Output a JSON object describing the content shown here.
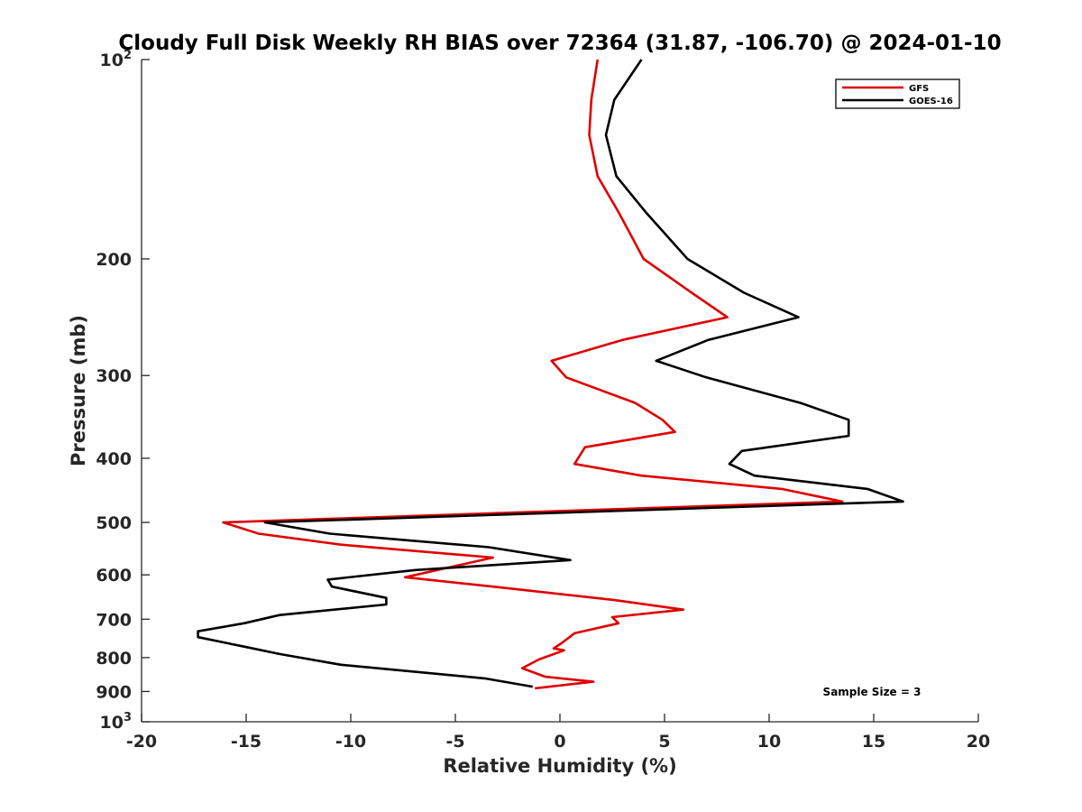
{
  "chart_data": {
    "type": "line",
    "title": "Cloudy Full Disk Weekly RH BIAS over 72364 (31.87, -106.70) @ 2024-01-10",
    "xlabel": "Relative Humidity (%)",
    "ylabel": "Pressure (mb)",
    "xlim": [
      -20,
      20
    ],
    "ylim": [
      100,
      1000
    ],
    "y_scale": "log",
    "y_reversed": true,
    "grid": false,
    "legend_position": "top-right",
    "annotation": "Sample Size = 3",
    "x_ticks": [
      {
        "value": -20,
        "label": "-20"
      },
      {
        "value": -15,
        "label": "-15"
      },
      {
        "value": -10,
        "label": "-10"
      },
      {
        "value": -5,
        "label": "-5"
      },
      {
        "value": 0,
        "label": "0"
      },
      {
        "value": 5,
        "label": "5"
      },
      {
        "value": 10,
        "label": "10"
      },
      {
        "value": 15,
        "label": "15"
      },
      {
        "value": 20,
        "label": "20"
      }
    ],
    "y_ticks": [
      {
        "value": 100,
        "label": "10",
        "sup": "2"
      },
      {
        "value": 200,
        "label": "200"
      },
      {
        "value": 300,
        "label": "300"
      },
      {
        "value": 400,
        "label": "400"
      },
      {
        "value": 500,
        "label": "500"
      },
      {
        "value": 600,
        "label": "600"
      },
      {
        "value": 700,
        "label": "700"
      },
      {
        "value": 800,
        "label": "800"
      },
      {
        "value": 900,
        "label": "900"
      },
      {
        "value": 1000,
        "label": "10",
        "sup": "3"
      }
    ],
    "series": [
      {
        "name": "GFS",
        "color": "#e00000",
        "points": [
          [
            1.8,
            100
          ],
          [
            1.5,
            115
          ],
          [
            1.4,
            130
          ],
          [
            1.8,
            150
          ],
          [
            2.8,
            170
          ],
          [
            4.0,
            200
          ],
          [
            6.3,
            225
          ],
          [
            8.0,
            245
          ],
          [
            3.0,
            265
          ],
          [
            -0.4,
            285
          ],
          [
            0.3,
            302
          ],
          [
            3.6,
            330
          ],
          [
            4.9,
            350
          ],
          [
            5.5,
            365
          ],
          [
            1.2,
            385
          ],
          [
            0.7,
            408
          ],
          [
            3.9,
            425
          ],
          [
            10.6,
            445
          ],
          [
            13.5,
            465
          ],
          [
            -16.1,
            500
          ],
          [
            -14.4,
            520
          ],
          [
            -10.5,
            540
          ],
          [
            -3.2,
            565
          ],
          [
            -7.4,
            605
          ],
          [
            -3.2,
            625
          ],
          [
            2.6,
            655
          ],
          [
            5.9,
            677
          ],
          [
            2.5,
            695
          ],
          [
            2.8,
            710
          ],
          [
            0.7,
            735
          ],
          [
            0.1,
            760
          ],
          [
            -0.3,
            775
          ],
          [
            0.2,
            780
          ],
          [
            -1.0,
            805
          ],
          [
            -1.8,
            830
          ],
          [
            -0.7,
            855
          ],
          [
            1.6,
            870
          ],
          [
            -1.2,
            890
          ]
        ]
      },
      {
        "name": "GOES-16",
        "color": "#000000",
        "points": [
          [
            3.9,
            100
          ],
          [
            2.6,
            115
          ],
          [
            2.2,
            130
          ],
          [
            2.7,
            150
          ],
          [
            4.1,
            170
          ],
          [
            6.1,
            200
          ],
          [
            8.8,
            225
          ],
          [
            11.4,
            245
          ],
          [
            7.1,
            265
          ],
          [
            4.6,
            285
          ],
          [
            7.0,
            302
          ],
          [
            11.5,
            330
          ],
          [
            13.8,
            350
          ],
          [
            13.8,
            370
          ],
          [
            8.7,
            390
          ],
          [
            8.1,
            408
          ],
          [
            9.3,
            425
          ],
          [
            14.7,
            445
          ],
          [
            16.4,
            465
          ],
          [
            -14.1,
            500
          ],
          [
            -11.0,
            520
          ],
          [
            -3.4,
            545
          ],
          [
            0.5,
            570
          ],
          [
            -6.9,
            590
          ],
          [
            -11.1,
            610
          ],
          [
            -10.9,
            625
          ],
          [
            -8.3,
            650
          ],
          [
            -8.3,
            665
          ],
          [
            -13.4,
            690
          ],
          [
            -15.1,
            710
          ],
          [
            -17.3,
            730
          ],
          [
            -17.3,
            745
          ],
          [
            -15.1,
            770
          ],
          [
            -13.4,
            790
          ],
          [
            -10.5,
            820
          ],
          [
            -3.6,
            860
          ],
          [
            -1.3,
            885
          ]
        ]
      }
    ]
  }
}
